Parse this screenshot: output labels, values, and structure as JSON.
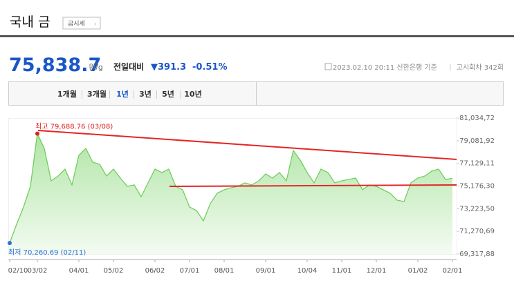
{
  "header": {
    "title": "국내 금",
    "button": "금시세",
    "price": "75,838.7",
    "unit": "원/g",
    "change_label": "전일대비",
    "change": "▼391.3",
    "change_rate": "-0.51%",
    "source": "2023.02.10 20:11 신한은행 기준",
    "round": "고시회차 342회"
  },
  "tabs": [
    "1개월",
    "3개월",
    "1년",
    "3년",
    "5년",
    "10년"
  ],
  "chart_data": {
    "type": "area",
    "color": "#6fcf5c",
    "categories": [
      "02/10",
      null,
      null,
      null,
      "03/02",
      null,
      null,
      null,
      null,
      null,
      "04/01",
      null,
      null,
      null,
      null,
      "05/02",
      null,
      null,
      null,
      null,
      null,
      "06/02",
      null,
      null,
      null,
      null,
      "07/01",
      null,
      null,
      null,
      null,
      "08/01",
      null,
      null,
      null,
      null,
      null,
      "09/01",
      null,
      null,
      null,
      null,
      null,
      "10/04",
      null,
      null,
      null,
      null,
      "11/01",
      null,
      null,
      null,
      null,
      "12/01",
      null,
      null,
      null,
      null,
      null,
      "01/02",
      null,
      null,
      null,
      null,
      "02/01"
    ],
    "values": [
      70260.69,
      71875,
      73362,
      75147,
      79688.76,
      78418,
      75622,
      76039,
      76634,
      75266,
      77823,
      78418,
      77228,
      77050,
      76039,
      76634,
      75860,
      75147,
      75266,
      74255,
      75444,
      76634,
      76336,
      76634,
      75147,
      74849,
      73362,
      73065,
      72173,
      73660,
      74552,
      74849,
      75028,
      75147,
      75444,
      75266,
      75622,
      76217,
      75860,
      76336,
      75622,
      78239,
      77407,
      76336,
      75444,
      76634,
      76336,
      75444,
      75622,
      75741,
      75860,
      74849,
      75266,
      75147,
      74849,
      74552,
      73957,
      73838,
      75444,
      75860,
      76039,
      76455,
      76634,
      75741,
      75838.7
    ],
    "ylim": [
      69317.88,
      81034.72
    ],
    "yticks": [
      {
        "value": 69317.88,
        "label": "69,317,88"
      },
      {
        "value": 71270.69,
        "label": "71,270,69"
      },
      {
        "value": 73223.5,
        "label": "73,223,50"
      },
      {
        "value": 75176.3,
        "label": "75,176,30"
      },
      {
        "value": 77129.11,
        "label": "77,129,11"
      },
      {
        "value": 79081.92,
        "label": "79,081,92"
      },
      {
        "value": 81034.72,
        "label": "81,034,72"
      }
    ],
    "grid": false,
    "annotations": [
      {
        "text": "최고 79,688.76 (03/08)",
        "index": 4,
        "color": "#e02020"
      },
      {
        "text": "최저 70,260.69 (02/11)",
        "index": 0,
        "color": "#2a6fdb"
      }
    ]
  }
}
